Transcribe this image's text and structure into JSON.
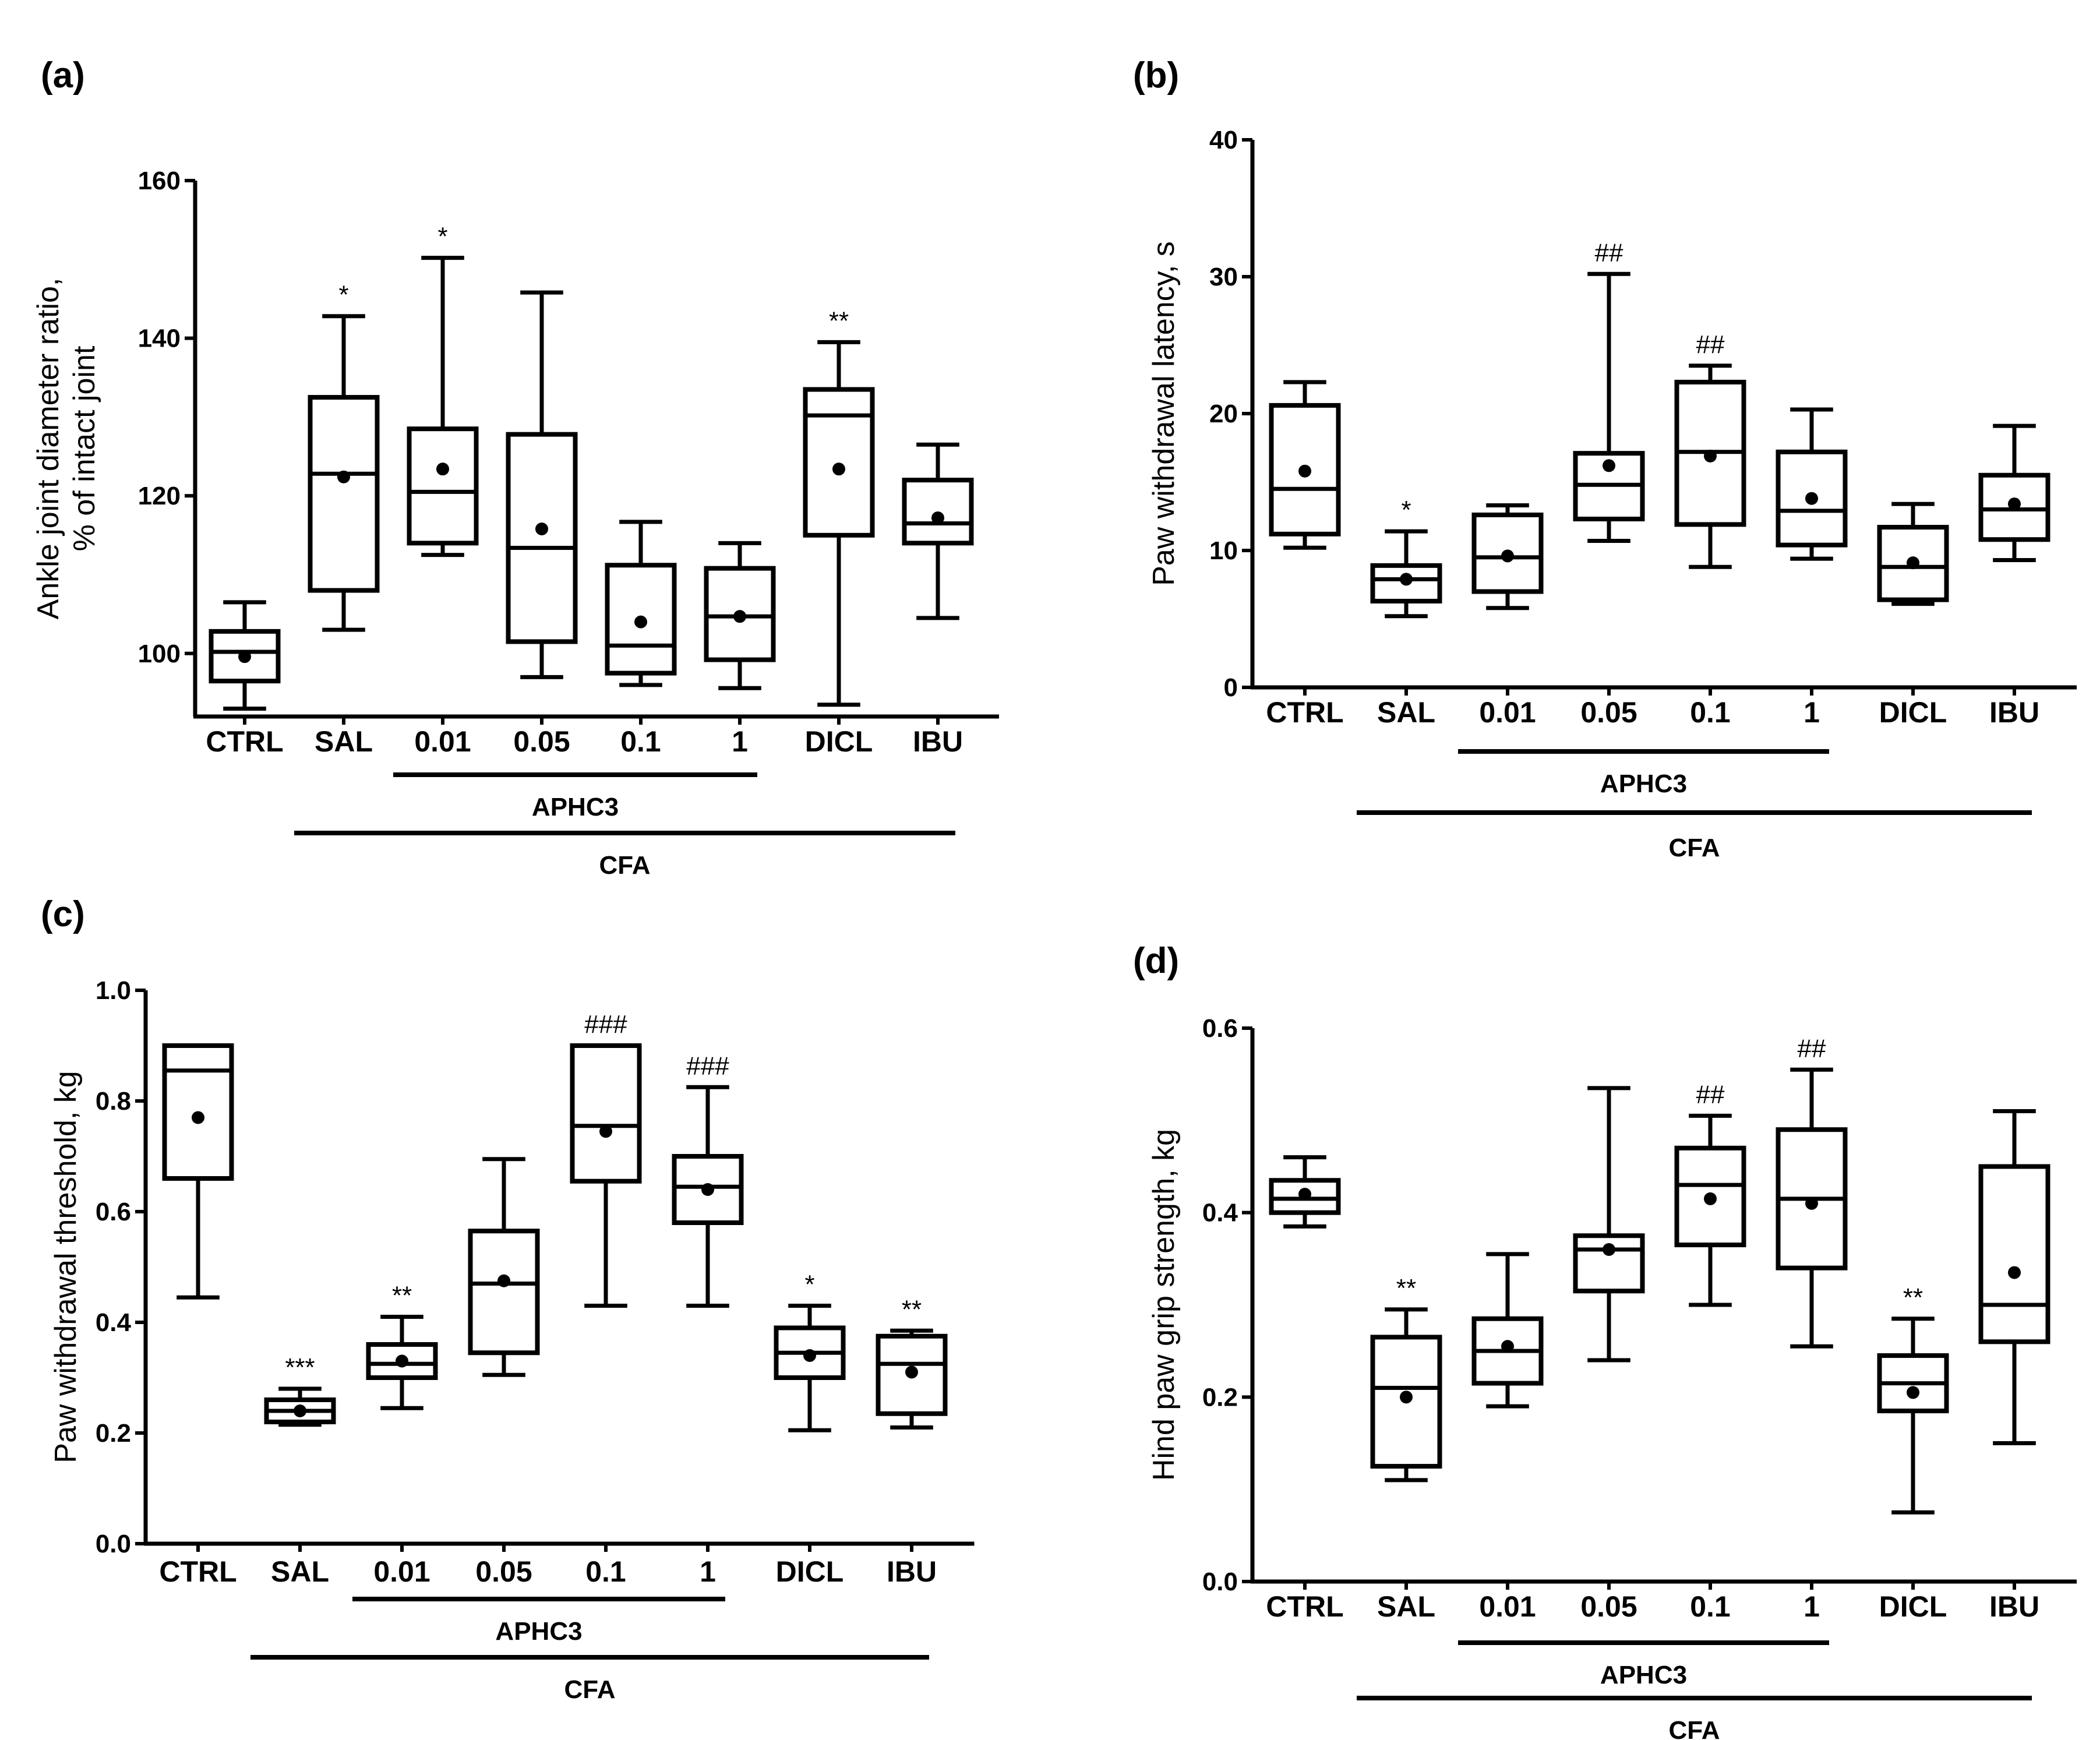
{
  "figure": {
    "colors": {
      "ink": "#000000",
      "background": "#ffffff"
    }
  },
  "chart_data": [
    {
      "panel_label": "(a)",
      "type": "box",
      "ylabel": [
        "Ankle joint diameter ratio,",
        "% of intact joint"
      ],
      "yticks": [
        "100",
        "120",
        "140",
        "160"
      ],
      "yticks_values": [
        100,
        120,
        140,
        160
      ],
      "ylim": [
        92,
        160
      ],
      "categories": [
        "CTRL",
        "SAL",
        "0.01",
        "0.05",
        "0.1",
        "1",
        "DICL",
        "IBU"
      ],
      "boxes": [
        {
          "min": 93,
          "q1": 96.5,
          "median": 100.2,
          "q3": 102.8,
          "max": 106.5,
          "mean": 99.6
        },
        {
          "min": 103,
          "q1": 108,
          "median": 122.8,
          "q3": 132.5,
          "max": 142.8,
          "mean": 122.4
        },
        {
          "min": 112.5,
          "q1": 114,
          "median": 120.5,
          "q3": 128.5,
          "max": 150.2,
          "mean": 123.4
        },
        {
          "min": 97,
          "q1": 101.5,
          "median": 113.4,
          "q3": 127.8,
          "max": 145.8,
          "mean": 115.8
        },
        {
          "min": 96,
          "q1": 97.5,
          "median": 101,
          "q3": 111.2,
          "max": 116.7,
          "mean": 104
        },
        {
          "min": 95.6,
          "q1": 99.2,
          "median": 104.7,
          "q3": 110.8,
          "max": 114,
          "mean": 104.7
        },
        {
          "min": 93.5,
          "q1": 115,
          "median": 130.2,
          "q3": 133.5,
          "max": 139.5,
          "mean": 123.4
        },
        {
          "min": 104.5,
          "q1": 114,
          "median": 116.5,
          "q3": 122,
          "max": 126.5,
          "mean": 117.2
        }
      ],
      "annotations": [
        "",
        "*",
        "*",
        "",
        "",
        "",
        "**",
        ""
      ],
      "groups": [
        {
          "label": "APHC3",
          "from": 2,
          "to": 5
        },
        {
          "label": "CFA",
          "from": 1,
          "to": 7
        }
      ]
    },
    {
      "panel_label": "(b)",
      "type": "box",
      "ylabel": [
        "Paw withdrawal latency, s"
      ],
      "yticks": [
        "0",
        "10",
        "20",
        "30",
        "40"
      ],
      "yticks_values": [
        0,
        10,
        20,
        30,
        40
      ],
      "ylim": [
        0,
        40
      ],
      "categories": [
        "CTRL",
        "SAL",
        "0.01",
        "0.05",
        "0.1",
        "1",
        "DICL",
        "IBU"
      ],
      "boxes": [
        {
          "min": 10.2,
          "q1": 11.2,
          "median": 14.5,
          "q3": 20.6,
          "max": 22.3,
          "mean": 15.8
        },
        {
          "min": 5.2,
          "q1": 6.3,
          "median": 7.9,
          "q3": 8.9,
          "max": 11.4,
          "mean": 7.9
        },
        {
          "min": 5.8,
          "q1": 7,
          "median": 9.5,
          "q3": 12.6,
          "max": 13.3,
          "mean": 9.6
        },
        {
          "min": 10.7,
          "q1": 12.3,
          "median": 14.8,
          "q3": 17.1,
          "max": 30.2,
          "mean": 16.2
        },
        {
          "min": 8.8,
          "q1": 11.9,
          "median": 17.2,
          "q3": 22.3,
          "max": 23.5,
          "mean": 16.9
        },
        {
          "min": 9.4,
          "q1": 10.4,
          "median": 12.9,
          "q3": 17.2,
          "max": 20.3,
          "mean": 13.8
        },
        {
          "min": 6.1,
          "q1": 6.4,
          "median": 8.8,
          "q3": 11.7,
          "max": 13.4,
          "mean": 9.1
        },
        {
          "min": 9.3,
          "q1": 10.8,
          "median": 13,
          "q3": 15.5,
          "max": 19.1,
          "mean": 13.4
        }
      ],
      "annotations": [
        "",
        "*",
        "",
        "##",
        "##",
        "",
        "",
        ""
      ],
      "groups": [
        {
          "label": "APHC3",
          "from": 2,
          "to": 5
        },
        {
          "label": "CFA",
          "from": 1,
          "to": 7
        }
      ]
    },
    {
      "panel_label": "(c)",
      "type": "box",
      "ylabel": [
        "Paw withdrawal threshold, kg"
      ],
      "yticks": [
        "0.0",
        "0.2",
        "0.4",
        "0.6",
        "0.8",
        "1.0"
      ],
      "yticks_values": [
        0,
        0.2,
        0.4,
        0.6,
        0.8,
        1.0
      ],
      "ylim": [
        0,
        1.0
      ],
      "categories": [
        "CTRL",
        "SAL",
        "0.01",
        "0.05",
        "0.1",
        "1",
        "DICL",
        "IBU"
      ],
      "boxes": [
        {
          "min": 0.445,
          "q1": 0.66,
          "median": 0.855,
          "q3": 0.9,
          "max": 0.9,
          "mean": 0.77
        },
        {
          "min": 0.215,
          "q1": 0.22,
          "median": 0.24,
          "q3": 0.26,
          "max": 0.28,
          "mean": 0.24
        },
        {
          "min": 0.245,
          "q1": 0.3,
          "median": 0.325,
          "q3": 0.36,
          "max": 0.41,
          "mean": 0.33
        },
        {
          "min": 0.305,
          "q1": 0.345,
          "median": 0.47,
          "q3": 0.565,
          "max": 0.695,
          "mean": 0.475
        },
        {
          "min": 0.43,
          "q1": 0.655,
          "median": 0.755,
          "q3": 0.9,
          "max": 0.9,
          "mean": 0.745
        },
        {
          "min": 0.43,
          "q1": 0.58,
          "median": 0.645,
          "q3": 0.7,
          "max": 0.825,
          "mean": 0.64
        },
        {
          "min": 0.205,
          "q1": 0.3,
          "median": 0.345,
          "q3": 0.39,
          "max": 0.43,
          "mean": 0.34
        },
        {
          "min": 0.21,
          "q1": 0.235,
          "median": 0.325,
          "q3": 0.375,
          "max": 0.385,
          "mean": 0.31
        }
      ],
      "annotations": [
        "",
        "***",
        "**",
        "",
        "###",
        "###",
        "*",
        "**"
      ],
      "groups": [
        {
          "label": "APHC3",
          "from": 2,
          "to": 5
        },
        {
          "label": "CFA",
          "from": 1,
          "to": 7
        }
      ]
    },
    {
      "panel_label": "(d)",
      "type": "box",
      "ylabel": [
        "Hind paw grip strength, kg"
      ],
      "yticks": [
        "0.0",
        "0.2",
        "0.4",
        "0.6"
      ],
      "yticks_values": [
        0,
        0.2,
        0.4,
        0.6
      ],
      "ylim": [
        0,
        0.6
      ],
      "categories": [
        "CTRL",
        "SAL",
        "0.01",
        "0.05",
        "0.1",
        "1",
        "DICL",
        "IBU"
      ],
      "boxes": [
        {
          "min": 0.385,
          "q1": 0.4,
          "median": 0.415,
          "q3": 0.435,
          "max": 0.46,
          "mean": 0.42
        },
        {
          "min": 0.11,
          "q1": 0.125,
          "median": 0.21,
          "q3": 0.265,
          "max": 0.295,
          "mean": 0.2
        },
        {
          "min": 0.19,
          "q1": 0.215,
          "median": 0.25,
          "q3": 0.285,
          "max": 0.355,
          "mean": 0.255
        },
        {
          "min": 0.24,
          "q1": 0.315,
          "median": 0.36,
          "q3": 0.375,
          "max": 0.535,
          "mean": 0.36
        },
        {
          "min": 0.3,
          "q1": 0.365,
          "median": 0.43,
          "q3": 0.47,
          "max": 0.505,
          "mean": 0.415
        },
        {
          "min": 0.255,
          "q1": 0.34,
          "median": 0.415,
          "q3": 0.49,
          "max": 0.555,
          "mean": 0.41
        },
        {
          "min": 0.075,
          "q1": 0.185,
          "median": 0.215,
          "q3": 0.245,
          "max": 0.285,
          "mean": 0.205
        },
        {
          "min": 0.15,
          "q1": 0.26,
          "median": 0.3,
          "q3": 0.45,
          "max": 0.51,
          "mean": 0.335
        }
      ],
      "annotations": [
        "",
        "**",
        "",
        "",
        "##",
        "##",
        "**",
        ""
      ],
      "groups": [
        {
          "label": "APHC3",
          "from": 2,
          "to": 5
        },
        {
          "label": "CFA",
          "from": 1,
          "to": 7
        }
      ]
    }
  ]
}
